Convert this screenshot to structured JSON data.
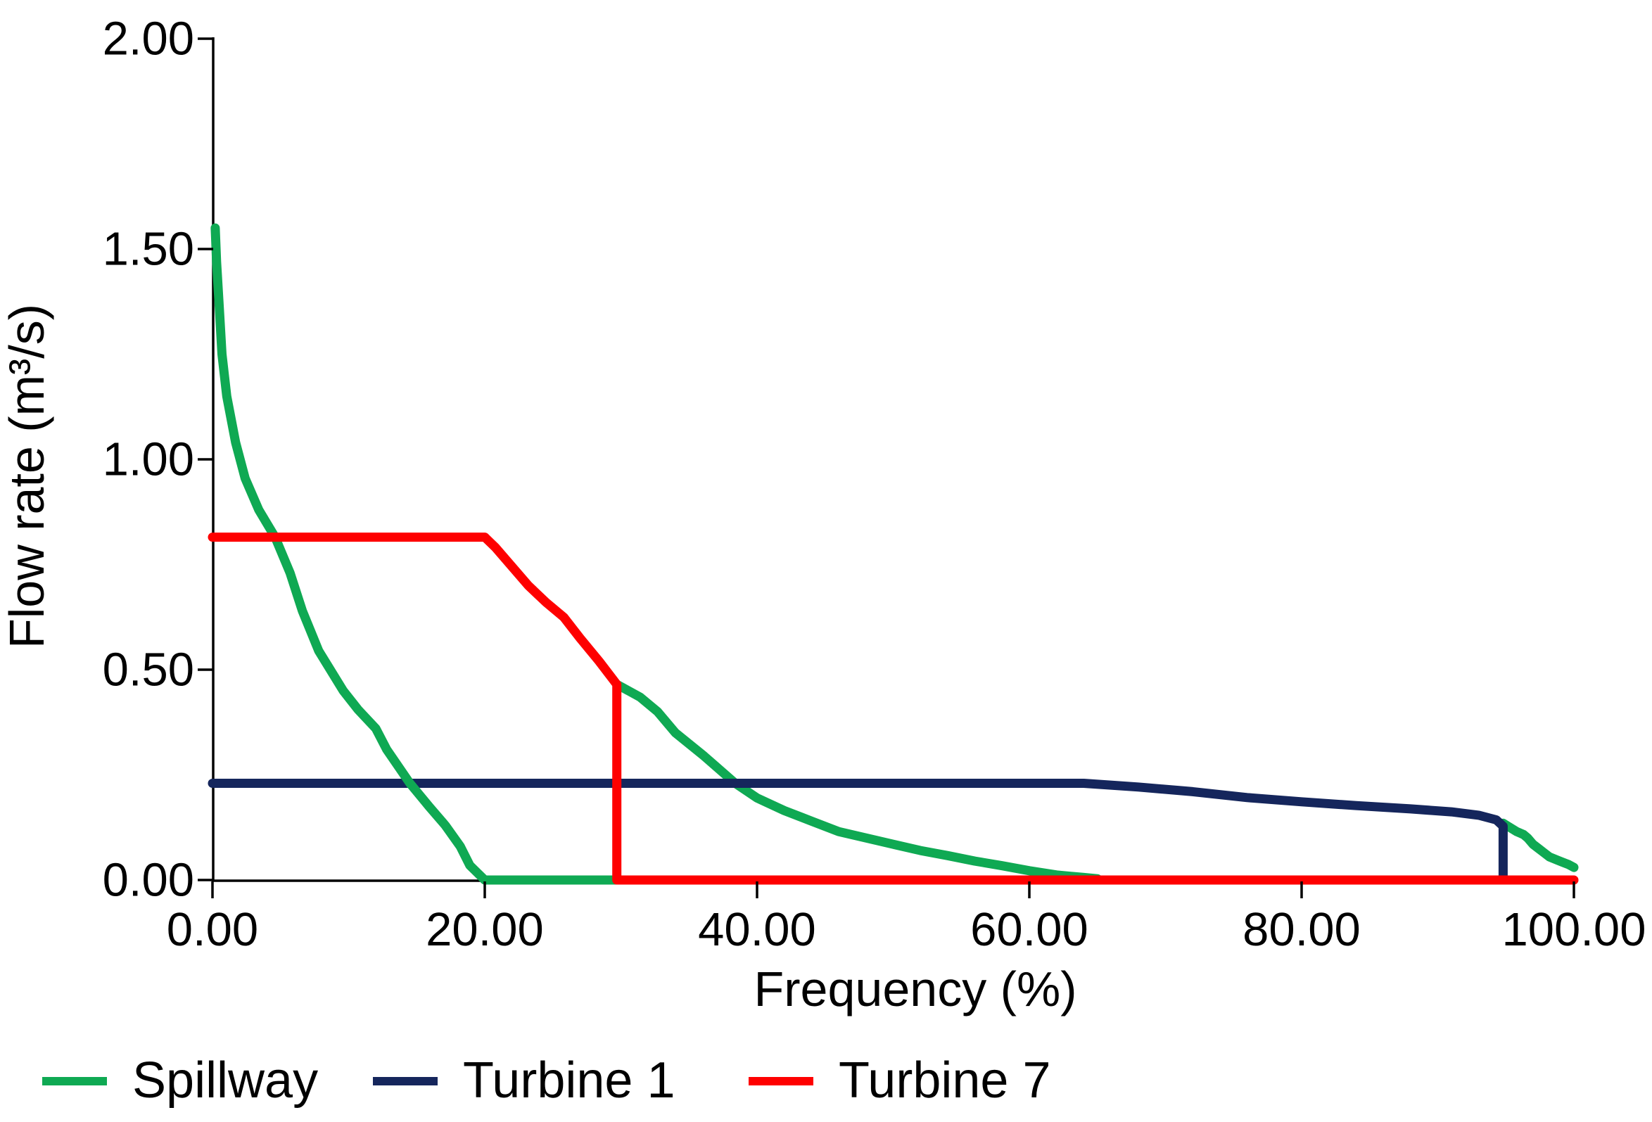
{
  "chart_data": {
    "type": "line",
    "title": "",
    "xlabel": "Frequency (%)",
    "ylabel": "Flow rate (m³/s)",
    "xlim": [
      0,
      100
    ],
    "ylim": [
      0,
      2
    ],
    "grid": false,
    "legend_position": "bottom-left",
    "x_tick_labels": [
      "0.00",
      "20.00",
      "40.00",
      "60.00",
      "80.00",
      "100.00"
    ],
    "x_tick_values": [
      0,
      20,
      40,
      60,
      80,
      100
    ],
    "y_tick_labels": [
      "0.00",
      "0.50",
      "1.00",
      "1.50",
      "2.00"
    ],
    "y_tick_values": [
      0,
      0.5,
      1,
      1.5,
      2
    ],
    "series": [
      {
        "name": "",
        "note": "unlabeled green segment drawn below the others (descends from the Turbine 7 drop)",
        "color": "#0fa953",
        "points": [
          [
            29.7,
            0.465
          ],
          [
            31.4,
            0.435
          ],
          [
            32.7,
            0.4
          ],
          [
            34.0,
            0.35
          ],
          [
            36.1,
            0.295
          ],
          [
            38.4,
            0.23
          ],
          [
            40,
            0.195
          ],
          [
            42,
            0.165
          ],
          [
            44,
            0.14
          ],
          [
            46,
            0.115
          ],
          [
            48,
            0.1
          ],
          [
            50,
            0.085
          ],
          [
            52,
            0.07
          ],
          [
            54,
            0.058
          ],
          [
            56,
            0.045
          ],
          [
            58,
            0.034
          ],
          [
            60,
            0.022
          ],
          [
            62,
            0.012
          ],
          [
            64,
            0.006
          ],
          [
            65,
            0.003
          ]
        ]
      },
      {
        "name": "",
        "note": "unlabeled green segment emerging where Turbine 1 drops to zero",
        "color": "#0fa953",
        "points": [
          [
            94.8,
            0.135
          ],
          [
            95.3,
            0.125
          ],
          [
            95.8,
            0.115
          ],
          [
            96.3,
            0.108
          ],
          [
            96.6,
            0.1
          ],
          [
            97.0,
            0.085
          ],
          [
            97.4,
            0.075
          ],
          [
            97.8,
            0.065
          ],
          [
            98.2,
            0.055
          ],
          [
            98.8,
            0.047
          ],
          [
            99.2,
            0.042
          ],
          [
            99.6,
            0.037
          ],
          [
            100,
            0.03
          ]
        ]
      },
      {
        "name": "Turbine 1",
        "color": "#15265c",
        "points": [
          [
            0,
            0.23
          ],
          [
            64,
            0.23
          ],
          [
            68,
            0.221
          ],
          [
            72,
            0.21
          ],
          [
            76,
            0.196
          ],
          [
            80,
            0.186
          ],
          [
            84,
            0.177
          ],
          [
            88,
            0.169
          ],
          [
            91,
            0.162
          ],
          [
            93,
            0.154
          ],
          [
            94.3,
            0.143
          ],
          [
            94.8,
            0.128
          ],
          [
            94.8,
            0.0
          ]
        ]
      },
      {
        "name": "Spillway",
        "color": "#0fa953",
        "points": [
          [
            0.2,
            1.55
          ],
          [
            0.3,
            1.47
          ],
          [
            0.5,
            1.36
          ],
          [
            0.7,
            1.25
          ],
          [
            1.05,
            1.15
          ],
          [
            1.7,
            1.04
          ],
          [
            2.4,
            0.955
          ],
          [
            3.4,
            0.88
          ],
          [
            4.6,
            0.815
          ],
          [
            5.7,
            0.73
          ],
          [
            6.6,
            0.64
          ],
          [
            7.8,
            0.545
          ],
          [
            9.6,
            0.45
          ],
          [
            10.7,
            0.405
          ],
          [
            12.0,
            0.36
          ],
          [
            12.8,
            0.31
          ],
          [
            14.5,
            0.23
          ],
          [
            15.9,
            0.175
          ],
          [
            17.1,
            0.13
          ],
          [
            18.2,
            0.08
          ],
          [
            18.9,
            0.035
          ],
          [
            20.0,
            0.0
          ],
          [
            29.7,
            0.0
          ]
        ]
      },
      {
        "name": "Turbine 7",
        "color": "#fe0000",
        "points": [
          [
            0,
            0.815
          ],
          [
            20,
            0.815
          ],
          [
            20.8,
            0.79
          ],
          [
            22,
            0.745
          ],
          [
            23.2,
            0.7
          ],
          [
            24.5,
            0.66
          ],
          [
            25.8,
            0.625
          ],
          [
            27,
            0.575
          ],
          [
            28.4,
            0.52
          ],
          [
            29.7,
            0.465
          ],
          [
            29.7,
            0.0
          ],
          [
            100,
            0.0
          ]
        ]
      }
    ]
  },
  "legend": {
    "items": [
      {
        "label": "Spillway",
        "color": "#0fa953"
      },
      {
        "label": "Turbine 1",
        "color": "#15265c"
      },
      {
        "label": "Turbine 7",
        "color": "#fe0000"
      }
    ]
  },
  "colors": {
    "axis": "#000000",
    "background": "#ffffff",
    "green": "#0fa953",
    "navy": "#15265c",
    "red": "#fe0000"
  }
}
